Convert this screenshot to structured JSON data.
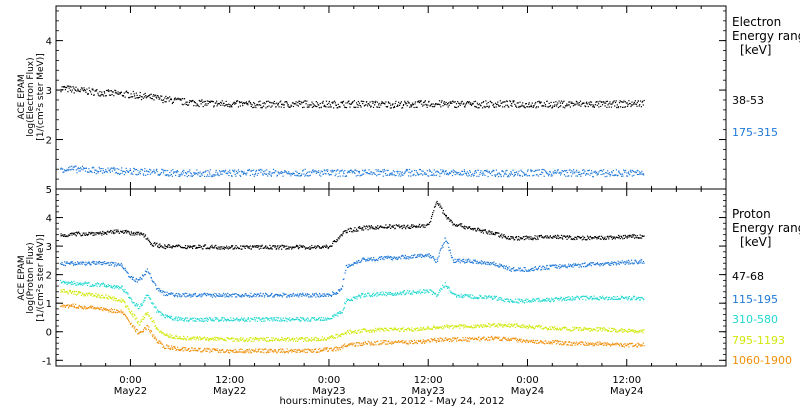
{
  "figure": {
    "x_title": "hours:minutes, May 21, 2012 - May 24, 2012",
    "x_ticks": [
      {
        "hours": 24,
        "time": "0:00",
        "date": "May22"
      },
      {
        "hours": 36,
        "time": "12:00",
        "date": "May22"
      },
      {
        "hours": 48,
        "time": "0:00",
        "date": "May23"
      },
      {
        "hours": 60,
        "time": "12:00",
        "date": "May23"
      },
      {
        "hours": 72,
        "time": "0:00",
        "date": "May24"
      },
      {
        "hours": 84,
        "time": "12:00",
        "date": "May24"
      }
    ]
  },
  "panels": [
    {
      "id": "electron",
      "ylabel_lines": [
        "ACE EPAM",
        "log(Electron Flux)",
        "[1/(cm²s ster MeV)]"
      ],
      "legend_lines": [
        "Electron",
        "Energy range",
        "[keV]"
      ],
      "series_labels": [
        {
          "text": "38-53",
          "color": "#000000"
        },
        {
          "text": "175-315",
          "color": "#1f78d8"
        }
      ]
    },
    {
      "id": "proton",
      "ylabel_lines": [
        "ACE EPAM",
        "log(Proton Flux)",
        "[1/(cm²s ster MeV)]"
      ],
      "legend_lines": [
        "Proton",
        "Energy range",
        "[keV]"
      ],
      "series_labels": [
        {
          "text": "47-68",
          "color": "#000000"
        },
        {
          "text": "115-195",
          "color": "#1f78d8"
        },
        {
          "text": "310-580",
          "color": "#22d8d0"
        },
        {
          "text": "795-1193",
          "color": "#d0e80a"
        },
        {
          "text": "1060-1900",
          "color": "#f0900a"
        }
      ]
    }
  ],
  "chart_data": [
    {
      "type": "scatter",
      "title": "",
      "xlabel": "hours:minutes, May 21, 2012 - May 24, 2012",
      "ylabel": "ACE EPAM log(Electron Flux) [1/(cm²s ster MeV)]",
      "x_unit": "hours since May 21, 2012 0:00",
      "xlim": [
        15,
        96
      ],
      "ylim": [
        1,
        4.7
      ],
      "yticks": [
        2,
        3,
        4
      ],
      "grid": false,
      "series": [
        {
          "name": "38-53",
          "color": "#000000",
          "x": [
            15.5,
            18,
            21,
            24,
            27,
            30,
            33,
            36,
            39,
            42,
            45,
            48,
            51,
            54,
            57,
            60,
            63,
            66,
            69,
            72,
            75,
            78,
            81,
            84,
            86
          ],
          "y": [
            3.05,
            3.0,
            2.95,
            2.92,
            2.85,
            2.78,
            2.74,
            2.73,
            2.72,
            2.72,
            2.73,
            2.72,
            2.73,
            2.72,
            2.72,
            2.73,
            2.73,
            2.72,
            2.73,
            2.72,
            2.72,
            2.73,
            2.72,
            2.73,
            2.75
          ]
        },
        {
          "name": "175-315",
          "color": "#1f78d8",
          "x": [
            15.5,
            20,
            25,
            30,
            35,
            40,
            45,
            50,
            55,
            60,
            65,
            70,
            75,
            80,
            86
          ],
          "y": [
            1.42,
            1.39,
            1.36,
            1.33,
            1.33,
            1.34,
            1.34,
            1.33,
            1.34,
            1.34,
            1.33,
            1.33,
            1.34,
            1.33,
            1.33
          ]
        }
      ]
    },
    {
      "type": "scatter",
      "title": "",
      "xlabel": "hours:minutes, May 21, 2012 - May 24, 2012",
      "ylabel": "ACE EPAM log(Proton Flux) [1/(cm²s ster MeV)]",
      "x_unit": "hours since May 21, 2012 0:00",
      "xlim": [
        15,
        96
      ],
      "ylim": [
        -1.2,
        5.0
      ],
      "yticks": [
        -1,
        0,
        1,
        2,
        3,
        4,
        5
      ],
      "grid": false,
      "series": [
        {
          "name": "47-68",
          "color": "#000000",
          "x": [
            15.5,
            18,
            21,
            23,
            24,
            25.5,
            26.5,
            28,
            30,
            36,
            42,
            46,
            48,
            50,
            52,
            55,
            58,
            60,
            61,
            62,
            63,
            65,
            68,
            70,
            72,
            75,
            78,
            81,
            84,
            86
          ],
          "y": [
            3.4,
            3.45,
            3.48,
            3.55,
            3.45,
            3.45,
            3.1,
            3.0,
            3.0,
            2.98,
            2.98,
            2.98,
            3.0,
            3.55,
            3.65,
            3.7,
            3.7,
            3.75,
            4.6,
            4.1,
            3.8,
            3.65,
            3.45,
            3.3,
            3.3,
            3.35,
            3.3,
            3.3,
            3.35,
            3.35
          ]
        },
        {
          "name": "115-195",
          "color": "#1f78d8",
          "x": [
            15.5,
            18,
            21,
            23,
            24,
            25,
            26,
            27,
            28,
            30,
            36,
            42,
            46,
            48,
            49.5,
            50,
            52,
            55,
            58,
            60,
            61,
            62,
            63,
            65,
            68,
            70,
            72,
            75,
            78,
            81,
            84,
            86
          ],
          "y": [
            2.4,
            2.42,
            2.42,
            2.35,
            1.9,
            1.8,
            2.2,
            1.6,
            1.35,
            1.3,
            1.3,
            1.3,
            1.3,
            1.3,
            1.5,
            2.3,
            2.55,
            2.6,
            2.65,
            2.7,
            2.5,
            3.3,
            2.5,
            2.5,
            2.4,
            2.2,
            2.2,
            2.3,
            2.35,
            2.4,
            2.45,
            2.48
          ]
        },
        {
          "name": "310-580",
          "color": "#22d8d0",
          "x": [
            15.5,
            18,
            21,
            23,
            24,
            25,
            26,
            27,
            28,
            30,
            36,
            42,
            46,
            48,
            49.5,
            50,
            52,
            55,
            58,
            60,
            61,
            62,
            63,
            65,
            68,
            70,
            72,
            75,
            78,
            81,
            84,
            86
          ],
          "y": [
            1.75,
            1.7,
            1.65,
            1.55,
            1.15,
            0.85,
            1.3,
            0.8,
            0.55,
            0.45,
            0.45,
            0.45,
            0.45,
            0.5,
            0.7,
            1.1,
            1.3,
            1.35,
            1.4,
            1.45,
            1.3,
            1.7,
            1.3,
            1.25,
            1.2,
            1.1,
            1.1,
            1.15,
            1.2,
            1.2,
            1.2,
            1.2
          ]
        },
        {
          "name": "795-1193",
          "color": "#d0e80a",
          "x": [
            15.5,
            18,
            21,
            23,
            24,
            25,
            26,
            27,
            28,
            30,
            36,
            42,
            46,
            48,
            49.5,
            50,
            52,
            55,
            58,
            60,
            62,
            65,
            68,
            70,
            72,
            75,
            78,
            81,
            84,
            86
          ],
          "y": [
            1.45,
            1.35,
            1.25,
            1.1,
            0.7,
            0.3,
            0.7,
            0.2,
            -0.1,
            -0.2,
            -0.25,
            -0.25,
            -0.25,
            -0.2,
            -0.1,
            0.0,
            0.05,
            0.1,
            0.1,
            0.15,
            0.2,
            0.2,
            0.25,
            0.25,
            0.2,
            0.15,
            0.1,
            0.1,
            0.05,
            0.05
          ]
        },
        {
          "name": "1060-1900",
          "color": "#f0900a",
          "x": [
            15.5,
            18,
            21,
            23,
            24,
            25,
            26,
            27,
            28,
            30,
            36,
            42,
            46,
            48,
            49.5,
            50,
            52,
            55,
            58,
            60,
            62,
            65,
            68,
            70,
            72,
            75,
            78,
            81,
            84,
            86
          ],
          "y": [
            0.95,
            0.9,
            0.8,
            0.7,
            0.3,
            -0.05,
            0.2,
            -0.25,
            -0.5,
            -0.6,
            -0.65,
            -0.65,
            -0.65,
            -0.6,
            -0.55,
            -0.45,
            -0.4,
            -0.35,
            -0.35,
            -0.3,
            -0.25,
            -0.25,
            -0.2,
            -0.25,
            -0.3,
            -0.35,
            -0.4,
            -0.4,
            -0.45,
            -0.45
          ]
        }
      ]
    }
  ]
}
